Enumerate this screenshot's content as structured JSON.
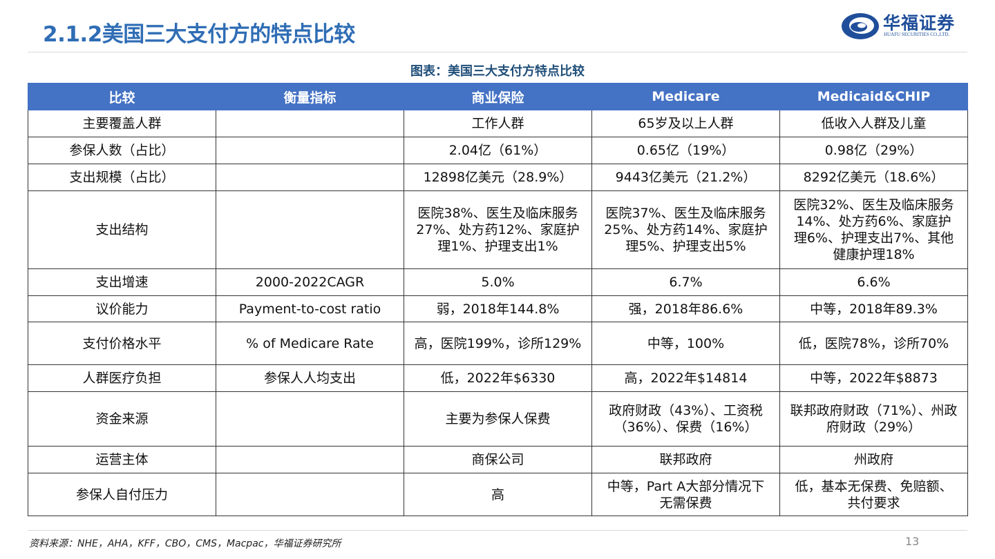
{
  "header": {
    "title": "2.1.2美国三大支付方的特点比较",
    "logo": {
      "name": "华福证券",
      "subtitle": "HUAFU SECURITIES CO.,LTD."
    }
  },
  "caption": "图表：美国三大支付方特点比较",
  "table": {
    "columns": [
      "比较",
      "衡量指标",
      "商业保险",
      "Medicare",
      "Medicaid&CHIP"
    ],
    "rows": [
      [
        "主要覆盖人群",
        null,
        "工作人群",
        "65岁及以上人群",
        "低收入人群及儿童"
      ],
      [
        "参保人数（占比）",
        null,
        "2.04亿（61%）",
        "0.65亿（19%）",
        "0.98亿（29%）"
      ],
      [
        "支出规模（占比）",
        null,
        "12898亿美元（28.9%）",
        "9443亿美元（21.2%）",
        "8292亿美元（18.6%）"
      ],
      [
        "支出结构",
        null,
        "医院38%、医生及临床服务27%、处方药12%、家庭护理1%、护理支出1%",
        "医院37%、医生及临床服务25%、处方药14%、家庭护理5%、护理支出5%",
        "医院32%、医生及临床服务14%、处方药6%、家庭护理6%、护理支出7%、其他健康护理18%"
      ],
      [
        "支出增速",
        "2000-2022CAGR",
        "5.0%",
        "6.7%",
        "6.6%"
      ],
      [
        "议价能力",
        "Payment-to-cost ratio",
        "弱，2018年144.8%",
        "强，2018年86.6%",
        "中等，2018年89.3%"
      ],
      [
        "支付价格水平",
        "% of Medicare Rate",
        "高，医院199%，诊所129%",
        "中等，100%",
        "低，医院78%，诊所70%"
      ],
      [
        "人群医疗负担",
        "参保人人均支出",
        "低，2022年$6330",
        "高，2022年$14814",
        "中等，2022年$8873"
      ],
      [
        "资金来源",
        null,
        "主要为参保人保费",
        "政府财政（43%）、工资税（36%）、保费（16%）",
        "联邦政府财政（71%）、州政府财政（29%）"
      ],
      [
        "运营主体",
        null,
        "商保公司",
        "联邦政府",
        "州政府"
      ],
      [
        "参保人自付压力",
        null,
        "高",
        "中等，Part A大部分情况下无需保费",
        "低，基本无保费、免赔额、共付要求"
      ]
    ]
  },
  "footer": {
    "source": "资料来源：NHE，AHA，KFF，CBO，CMS，Macpac，华福证券研究所",
    "page_number": "13"
  }
}
